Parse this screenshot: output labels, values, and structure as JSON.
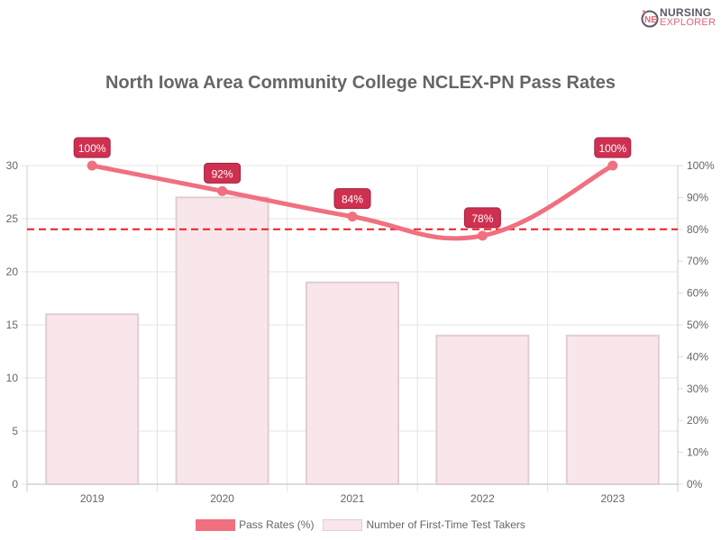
{
  "logo": {
    "line1": "NURSING",
    "line2": "EXPLORER"
  },
  "chart_data": {
    "type": "bar+line",
    "title": "North Iowa Area Community College NCLEX-PN Pass Rates",
    "categories": [
      "2019",
      "2020",
      "2021",
      "2022",
      "2023"
    ],
    "series": [
      {
        "name": "Pass Rates (%)",
        "type": "line",
        "axis": "right",
        "values": [
          100,
          92,
          84,
          78,
          100
        ],
        "labels": [
          "100%",
          "92%",
          "84%",
          "78%",
          "100%"
        ],
        "color": "#f07080"
      },
      {
        "name": "Number of First-Time Test Takers",
        "type": "bar",
        "axis": "left",
        "values": [
          16,
          27,
          19,
          14,
          14
        ],
        "color": "#f8e6ea",
        "border": "#e0cdd2"
      }
    ],
    "left_axis": {
      "ylim": [
        0,
        30
      ],
      "ticks": [
        "0",
        "5",
        "10",
        "15",
        "20",
        "25",
        "30"
      ]
    },
    "right_axis": {
      "ylim": [
        0,
        100
      ],
      "ticks": [
        "0%",
        "10%",
        "20%",
        "30%",
        "40%",
        "50%",
        "60%",
        "70%",
        "80%",
        "90%",
        "100%"
      ]
    },
    "reference_line": {
      "value": 80,
      "axis": "right",
      "style": "dashed",
      "color": "#ee1c25"
    },
    "label_color": "#d03050",
    "grid": true,
    "legend": "bottom"
  }
}
